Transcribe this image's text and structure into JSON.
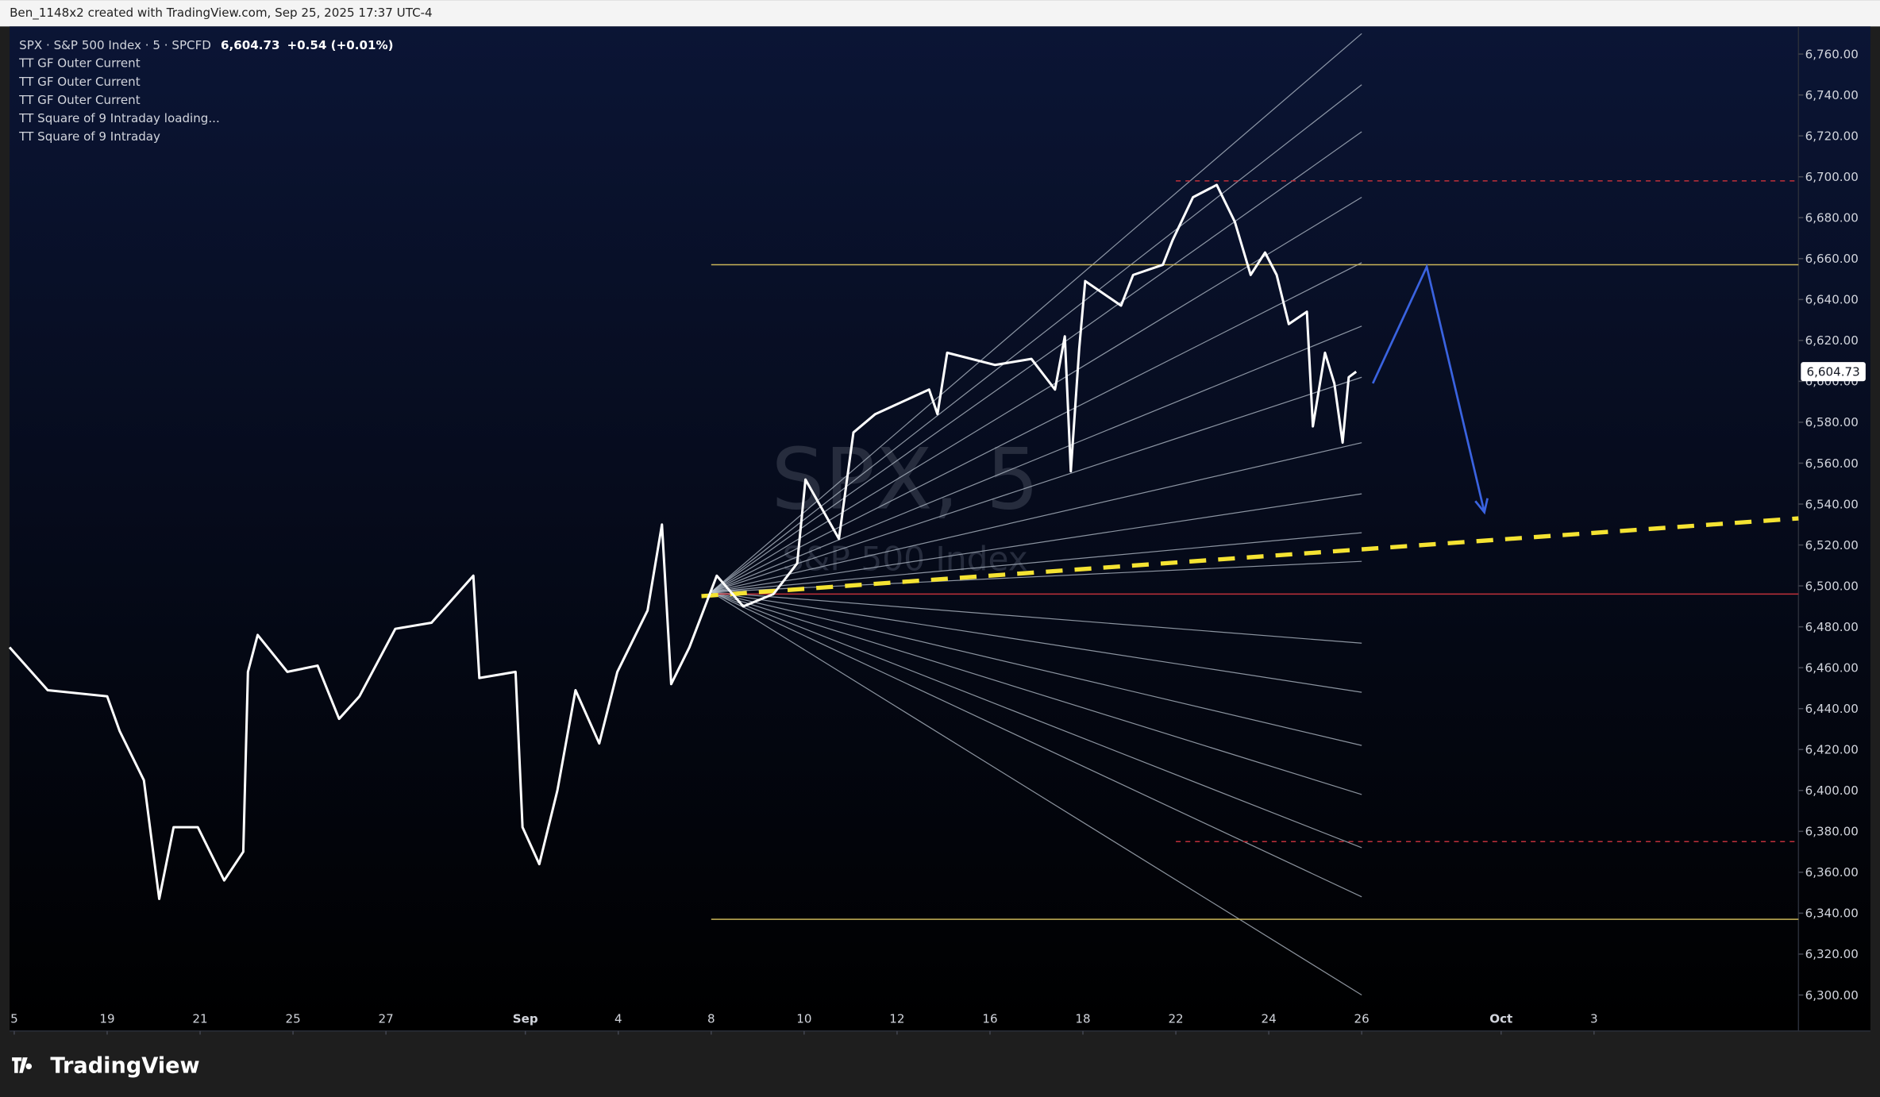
{
  "header": "Ben_1148x2 created with TradingView.com, Sep 25, 2025 17:37 UTC-4",
  "footer": "TradingView",
  "chart_data": {
    "type": "line",
    "symbol": "SPX · S&P 500 Index · 5 · SPCFD",
    "last": {
      "value": 6604.73,
      "label": "6,604.73"
    },
    "change": "+0.54 (+0.01%)",
    "indicators": [
      "TT GF Outer Current",
      "TT GF Outer Current",
      "TT GF Outer Current",
      "TT Square of 9 Intraday loading...",
      "TT Square of 9 Intraday"
    ],
    "watermark": "SPX, 5",
    "watermark_sub": "S&P 500 Index",
    "x": [
      -0.1,
      0.72,
      2.0,
      2.27,
      2.79,
      3.12,
      3.43,
      3.95,
      4.52,
      4.93,
      5.03,
      5.24,
      5.88,
      6.53,
      6.99,
      7.43,
      8.2,
      8.98,
      9.88,
      10.01,
      10.79,
      10.94,
      11.3,
      11.69,
      12.08,
      12.59,
      12.98,
      13.63,
      13.94,
      14.14,
      14.53,
      15.12,
      15.69,
      16.34,
      16.85,
      17.03,
      17.75,
      18.06,
      18.53,
      19.69,
      19.87,
      20.08,
      21.11,
      21.89,
      22.4,
      22.61,
      22.74,
      22.92,
      23.05,
      23.82,
      24.08,
      24.72,
      24.93,
      25.37,
      25.88,
      26.27,
      26.61,
      26.92,
      27.17,
      27.43,
      27.82,
      27.95,
      28.21,
      28.41,
      28.59,
      28.72,
      28.88
    ],
    "series": [
      {
        "color": "#ffffff",
        "values": [
          6470,
          6449,
          6446,
          6429,
          6405,
          6347,
          6382,
          6382,
          6356,
          6370,
          6458,
          6476,
          6458,
          6461,
          6435,
          6446,
          6479,
          6482,
          6505,
          6455,
          6458,
          6382,
          6364,
          6400,
          6449,
          6423,
          6458,
          6488,
          6530,
          6452,
          6470,
          6505,
          6490,
          6496,
          6511,
          6552,
          6523,
          6575,
          6584,
          6596,
          6584,
          6614,
          6608,
          6611,
          6596,
          6622,
          6556,
          6616,
          6649,
          6637,
          6652,
          6657,
          6669,
          6690,
          6696,
          6678,
          6652,
          6663,
          6652,
          6628,
          6634,
          6578,
          6614,
          6599,
          6570,
          6602,
          6604.73
        ]
      }
    ],
    "xlim": [
      -0.1,
      38.4
    ],
    "xticks": [
      {
        "value": 0,
        "label": "5"
      },
      {
        "value": 2,
        "label": "19"
      },
      {
        "value": 4,
        "label": "21"
      },
      {
        "value": 6,
        "label": "25"
      },
      {
        "value": 8,
        "label": "27"
      },
      {
        "value": 11,
        "label": "Sep"
      },
      {
        "value": 13,
        "label": "4"
      },
      {
        "value": 15,
        "label": "8"
      },
      {
        "value": 17,
        "label": "10"
      },
      {
        "value": 19,
        "label": "12"
      },
      {
        "value": 21,
        "label": "16"
      },
      {
        "value": 23,
        "label": "18"
      },
      {
        "value": 25,
        "label": "22"
      },
      {
        "value": 27,
        "label": "24"
      },
      {
        "value": 29,
        "label": "26"
      },
      {
        "value": 32,
        "label": "Oct"
      },
      {
        "value": 34,
        "label": "3"
      }
    ],
    "ylim": [
      6282.4,
      6773.5
    ],
    "yticks": [
      {
        "value": 6300,
        "label": "6,300.00"
      },
      {
        "value": 6320,
        "label": "6,320.00"
      },
      {
        "value": 6340,
        "label": "6,340.00"
      },
      {
        "value": 6360,
        "label": "6,360.00"
      },
      {
        "value": 6380,
        "label": "6,380.00"
      },
      {
        "value": 6400,
        "label": "6,400.00"
      },
      {
        "value": 6420,
        "label": "6,420.00"
      },
      {
        "value": 6440,
        "label": "6,440.00"
      },
      {
        "value": 6460,
        "label": "6,460.00"
      },
      {
        "value": 6480,
        "label": "6,480.00"
      },
      {
        "value": 6500,
        "label": "6,500.00"
      },
      {
        "value": 6520,
        "label": "6,520.00"
      },
      {
        "value": 6540,
        "label": "6,540.00"
      },
      {
        "value": 6560,
        "label": "6,560.00"
      },
      {
        "value": 6580,
        "label": "6,580.00"
      },
      {
        "value": 6600,
        "label": "6,600.00"
      },
      {
        "value": 6620,
        "label": "6,620.00"
      },
      {
        "value": 6640,
        "label": "6,640.00"
      },
      {
        "value": 6660,
        "label": "6,660.00"
      },
      {
        "value": 6680,
        "label": "6,680.00"
      },
      {
        "value": 6700,
        "label": "6,700.00"
      },
      {
        "value": 6720,
        "label": "6,720.00"
      },
      {
        "value": 6740,
        "label": "6,740.00"
      },
      {
        "value": 6760,
        "label": "6,760.00"
      }
    ],
    "hlines": [
      {
        "value": 6657,
        "color": "#c9b458",
        "dashed": false,
        "x": [
          15,
          38.4
        ]
      },
      {
        "value": 6337,
        "color": "#c9b458",
        "dashed": false,
        "x": [
          15,
          38.4
        ]
      },
      {
        "value": 6496,
        "color": "#c0303a",
        "dashed": false,
        "x": [
          15,
          38.4
        ]
      },
      {
        "value": 6698,
        "color": "#c0303a",
        "dashed": true,
        "x": [
          25,
          38.4
        ]
      },
      {
        "value": 6375,
        "color": "#c0303a",
        "dashed": true,
        "x": [
          25,
          38.4
        ]
      }
    ],
    "trendline": {
      "x": [
        14.79,
        38.4
      ],
      "values": [
        6495,
        6533
      ],
      "color": "#f5e332"
    },
    "arrow": {
      "x": [
        29.24,
        30.4,
        31.64
      ],
      "values": [
        6599,
        6656,
        6536
      ],
      "color": "#3a63e0"
    },
    "fan": {
      "x": [
        15,
        29
      ],
      "start": 6497,
      "color": "#b9c3cf",
      "ends": [
        6770,
        6745,
        6722,
        6690,
        6658,
        6627,
        6602,
        6570,
        6545,
        6526,
        6512,
        6472,
        6448,
        6422,
        6398,
        6372,
        6348,
        6300
      ]
    }
  }
}
